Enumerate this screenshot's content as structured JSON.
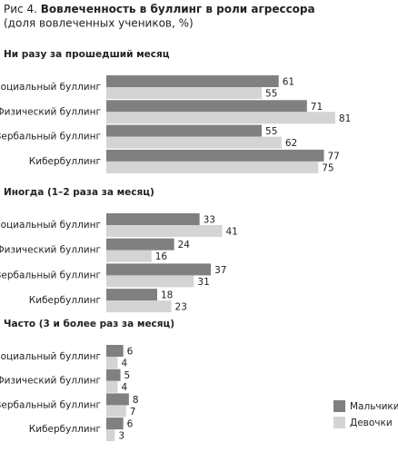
{
  "header": {
    "label": "Рис 4.",
    "title": "Вовлеченность в буллинг в роли агрессора",
    "subtitle": "(доля вовлеченных учеников, %)"
  },
  "chart_data": [
    {
      "type": "bar",
      "orientation": "horizontal",
      "title": "Ни разу за прошедший месяц",
      "categories": [
        "Социальный буллинг",
        "Физический буллинг",
        "Вербальный буллинг",
        "Кибербуллинг"
      ],
      "series": [
        {
          "name": "Мальчики",
          "color": "#808080",
          "values": [
            61,
            71,
            55,
            77
          ]
        },
        {
          "name": "Девочки",
          "color": "#d4d4d4",
          "values": [
            55,
            81,
            62,
            75
          ]
        }
      ]
    },
    {
      "type": "bar",
      "orientation": "horizontal",
      "title": "Иногда (1–2 раза за месяц)",
      "categories": [
        "Социальный буллинг",
        "Физический буллинг",
        "Вербальный буллинг",
        "Кибербуллинг"
      ],
      "series": [
        {
          "name": "Мальчики",
          "color": "#808080",
          "values": [
            33,
            24,
            37,
            18
          ]
        },
        {
          "name": "Девочки",
          "color": "#d4d4d4",
          "values": [
            41,
            16,
            31,
            23
          ]
        }
      ]
    },
    {
      "type": "bar",
      "orientation": "horizontal",
      "title": "Часто (3 и более раз за месяц)",
      "categories": [
        "Социальный буллинг",
        "Физический буллинг",
        "Вербальный буллинг",
        "Кибербуллинг"
      ],
      "series": [
        {
          "name": "Мальчики",
          "color": "#808080",
          "values": [
            6,
            5,
            8,
            6
          ]
        },
        {
          "name": "Девочки",
          "color": "#d4d4d4",
          "values": [
            4,
            4,
            7,
            3
          ]
        }
      ]
    }
  ]
}
